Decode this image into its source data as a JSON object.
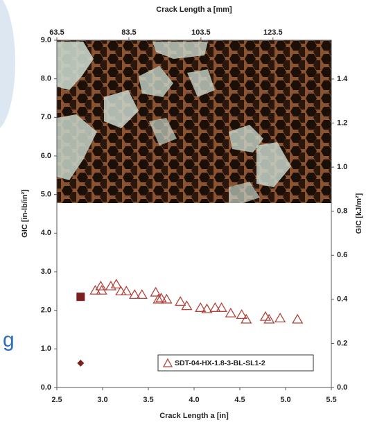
{
  "background_text": "g",
  "chart_data": {
    "type": "scatter",
    "x_label": "Crack Length a [in]",
    "x2_label": "Crack Length a [mm]",
    "y_label": "GIC [in-lb/in²]",
    "y2_label": "GIC [kJ/m²]",
    "xlim": [
      2.5,
      5.5
    ],
    "xticks": [
      2.5,
      {
        "value": 3,
        "label": "3.0"
      },
      3.5,
      {
        "value": 4,
        "label": "4.0"
      },
      4.5,
      {
        "value": 5,
        "label": "5.0"
      },
      5.5
    ],
    "x2lim": [
      63.5,
      139.7
    ],
    "x2ticks": [
      63.5,
      83.5,
      103.5,
      123.5
    ],
    "ylim": [
      0,
      9
    ],
    "yticks": [
      {
        "value": 0,
        "label": "0.0"
      },
      {
        "value": 1,
        "label": "1.0"
      },
      {
        "value": 2,
        "label": "2.0"
      },
      {
        "value": 3,
        "label": "3.0"
      },
      {
        "value": 4,
        "label": "4.0"
      },
      {
        "value": 5,
        "label": "5.0"
      },
      {
        "value": 6,
        "label": "6.0"
      },
      {
        "value": 7,
        "label": "7.0"
      },
      {
        "value": 8,
        "label": "8.0"
      },
      {
        "value": 9,
        "label": "9.0"
      }
    ],
    "y2lim": [
      0,
      1.576
    ],
    "y2ticks": [
      {
        "value": 0,
        "label": "0.0"
      },
      0.2,
      0.4,
      0.6,
      0.8,
      {
        "value": 1,
        "label": "1.0"
      },
      1.2,
      1.4
    ],
    "series": [
      {
        "name": "SDT-04-HX-1.8-3-BL-SL1-2",
        "color": "#b0443e",
        "marker": "triangle",
        "x": [
          2.92,
          2.98,
          2.99,
          3.09,
          3.15,
          3.2,
          3.26,
          3.35,
          3.43,
          3.58,
          3.61,
          3.64,
          3.7,
          3.85,
          3.92,
          4.07,
          4.14,
          4.23,
          4.3,
          4.4,
          4.52,
          4.57,
          4.78,
          4.82,
          4.94,
          5.13
        ],
        "values": [
          2.51,
          2.62,
          2.51,
          2.62,
          2.67,
          2.49,
          2.49,
          2.4,
          2.4,
          2.46,
          2.28,
          2.31,
          2.28,
          2.22,
          2.11,
          2.06,
          2.03,
          2.06,
          2.06,
          1.92,
          1.88,
          1.76,
          1.83,
          1.76,
          1.79,
          1.76
        ]
      },
      {
        "color": "#7b1f1f",
        "marker": "square",
        "x": [
          2.76
        ],
        "values": [
          2.35
        ]
      },
      {
        "color": "#7b1f1f",
        "marker": "diamond",
        "x": [
          2.76
        ],
        "values": [
          0.63
        ]
      }
    ],
    "legend": "lower right"
  }
}
